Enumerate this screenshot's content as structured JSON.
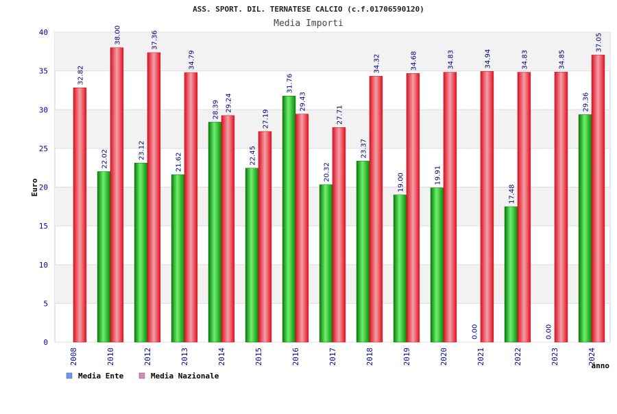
{
  "chart_data": {
    "type": "bar",
    "title": "ASS. SPORT. DIL. TERNATESE CALCIO (c.f.01706590120)",
    "subtitle": "Media Importi",
    "ylabel": "Euro",
    "xlabel": "anno",
    "ylim": [
      0,
      40
    ],
    "yticks": [
      "0",
      "5",
      "10",
      "15",
      "20",
      "25",
      "30",
      "35",
      "40"
    ],
    "categories": [
      "2008",
      "2010",
      "2012",
      "2013",
      "2014",
      "2015",
      "2016",
      "2017",
      "2018",
      "2019",
      "2020",
      "2021",
      "2022",
      "2023",
      "2024"
    ],
    "series": [
      {
        "name": "Media Ente",
        "color": "#1fbf1f",
        "values": [
          null,
          22.02,
          23.12,
          21.62,
          28.39,
          22.45,
          31.76,
          20.32,
          23.37,
          19.0,
          19.91,
          0.0,
          17.48,
          0.0,
          29.36
        ],
        "labels": [
          "",
          "22.02",
          "23.12",
          "21.62",
          "28.39",
          "22.45",
          "31.76",
          "20.32",
          "23.37",
          "19.00",
          "19.91",
          "0.00",
          "17.48",
          "0.00",
          "29.36"
        ]
      },
      {
        "name": "Media Nazionale",
        "color": "#ee2233",
        "values": [
          32.82,
          38.0,
          37.36,
          34.79,
          29.24,
          27.19,
          29.43,
          27.71,
          34.32,
          34.68,
          34.83,
          34.94,
          34.83,
          34.85,
          37.05
        ],
        "labels": [
          "32.82",
          "38.00",
          "37.36",
          "34.79",
          "29.24",
          "27.19",
          "29.43",
          "27.71",
          "34.32",
          "34.68",
          "34.83",
          "34.94",
          "34.83",
          "34.85",
          "37.05"
        ]
      }
    ],
    "legend": [
      {
        "label": "Media Ente",
        "swatch_color": "#6699ee"
      },
      {
        "label": "Media Nazionale",
        "swatch_color": "#dd88bb"
      }
    ],
    "legend_position": "bottom-left",
    "grid": true
  }
}
